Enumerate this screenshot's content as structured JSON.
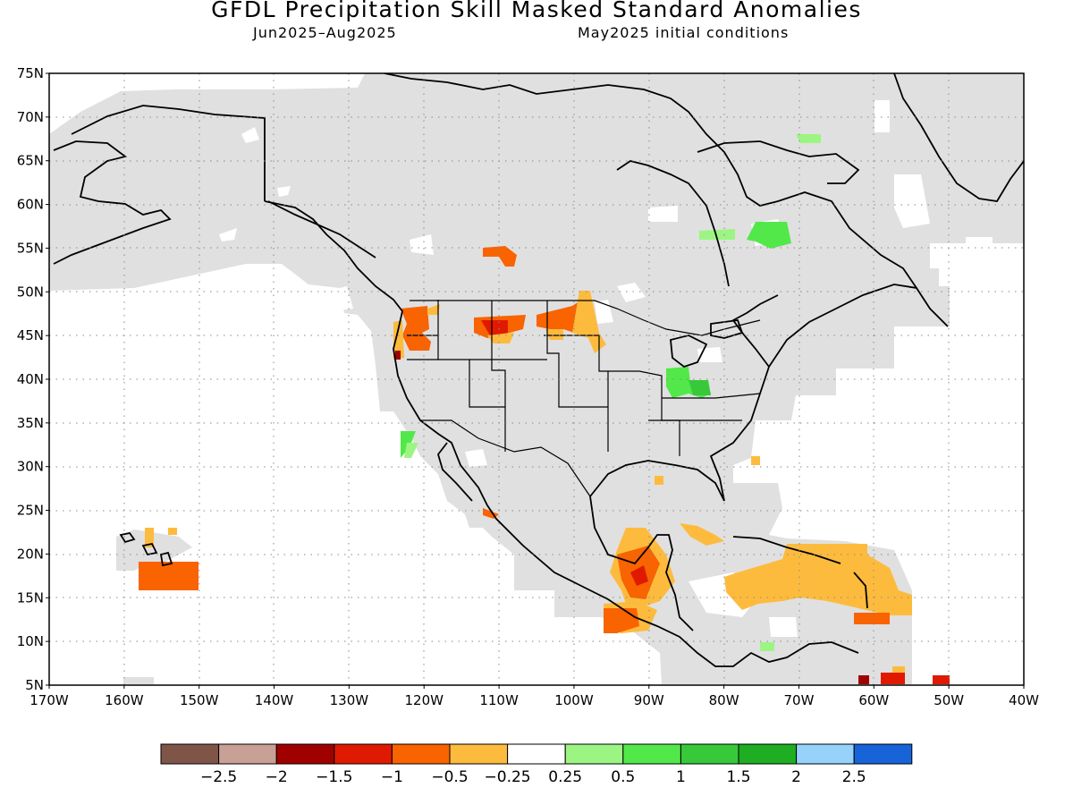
{
  "title": "GFDL Precipitation Skill Masked Standard Anomalies",
  "subtitle_left": "Jun2025–Aug2025",
  "subtitle_right": "May2025 initial conditions",
  "lat_labels": [
    "75N",
    "70N",
    "65N",
    "60N",
    "55N",
    "50N",
    "45N",
    "40N",
    "35N",
    "30N",
    "25N",
    "20N",
    "15N",
    "10N",
    "5N"
  ],
  "lon_labels": [
    "170W",
    "160W",
    "150W",
    "140W",
    "130W",
    "120W",
    "110W",
    "100W",
    "90W",
    "80W",
    "70W",
    "60W",
    "50W",
    "40W"
  ],
  "colorbar": {
    "colors": [
      "#7f5548",
      "#c9a096",
      "#a00000",
      "#e01a00",
      "#f96300",
      "#fdbb3e",
      "#ffffff",
      "#9cf583",
      "#52e84a",
      "#37c93a",
      "#1fad22",
      "#96d2fa",
      "#1664d8"
    ],
    "labels": [
      "−2.5",
      "−2",
      "−1.5",
      "−1",
      "−0.5",
      "−0.25",
      "0.25",
      "0.5",
      "1",
      "1.5",
      "2",
      "2.5"
    ]
  },
  "legend_colors": {
    "skill_mask": "#e0e0e0",
    "coastline": "#000000"
  }
}
